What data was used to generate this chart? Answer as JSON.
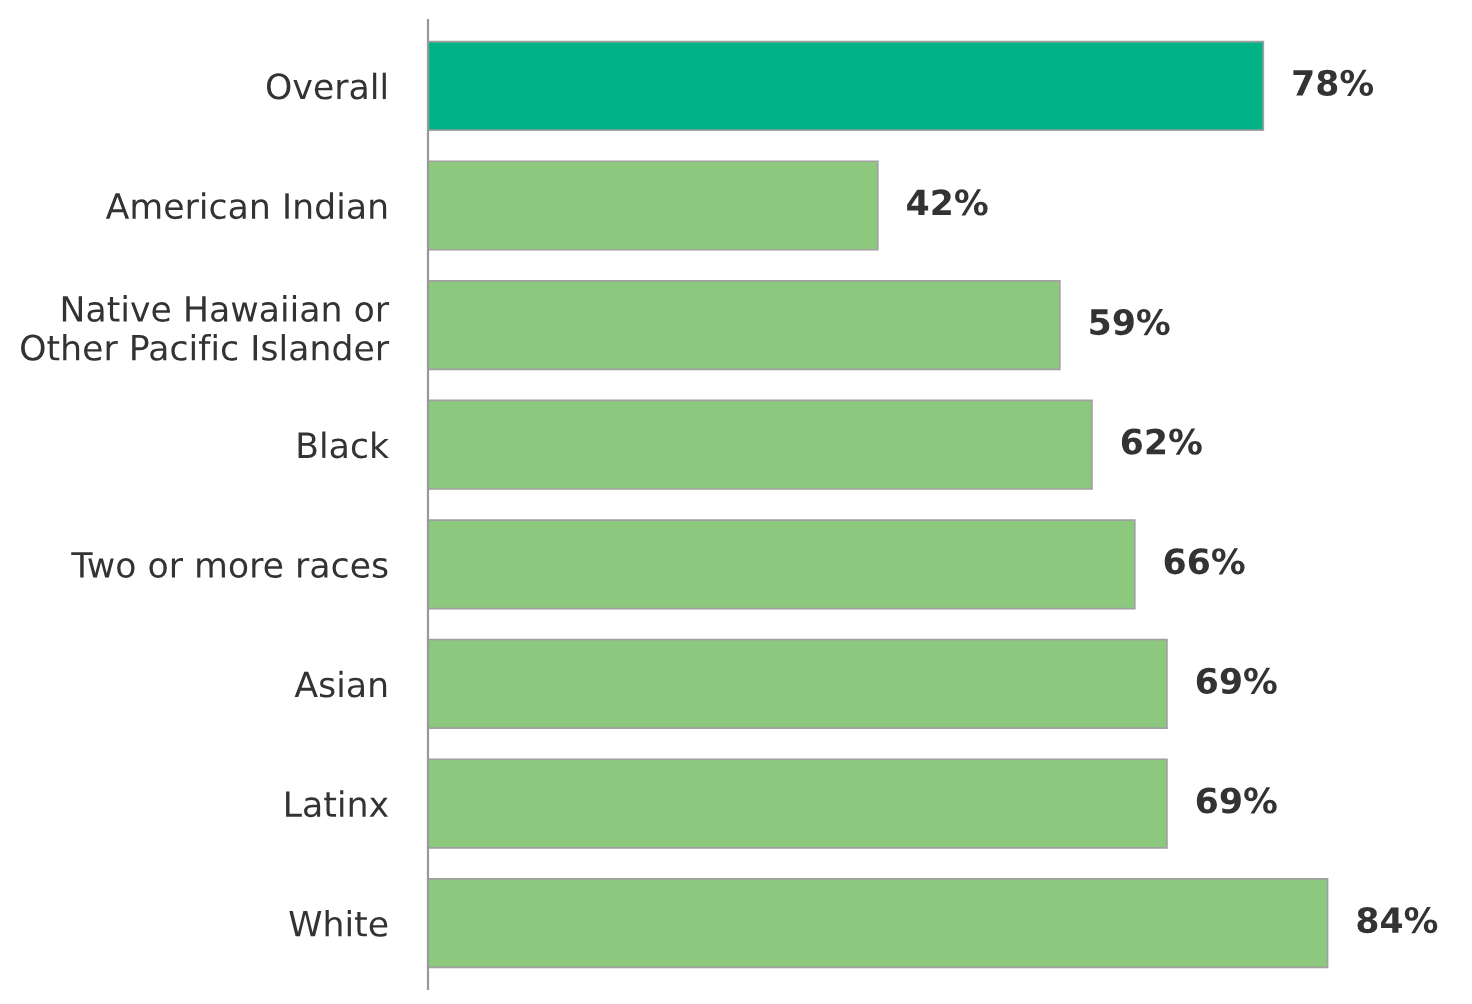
{
  "chart_data": {
    "type": "bar",
    "orientation": "horizontal",
    "categories": [
      "Overall",
      "American Indian",
      "Native Hawaiian or\nOther Pacific Islander",
      "Black",
      "Two or more races",
      "Asian",
      "Latinx",
      "White"
    ],
    "values": [
      78,
      42,
      59,
      62,
      66,
      69,
      69,
      84
    ],
    "colors": [
      "#00b386",
      "#8cc97e",
      "#8cc97e",
      "#8cc97e",
      "#8cc97e",
      "#8cc97e",
      "#8cc97e",
      "#8cc97e"
    ],
    "value_labels": [
      "78%",
      "42%",
      "59%",
      "62%",
      "66%",
      "69%",
      "69%",
      "84%"
    ],
    "tick_labels": "y",
    "grid": false,
    "legend": false
  }
}
